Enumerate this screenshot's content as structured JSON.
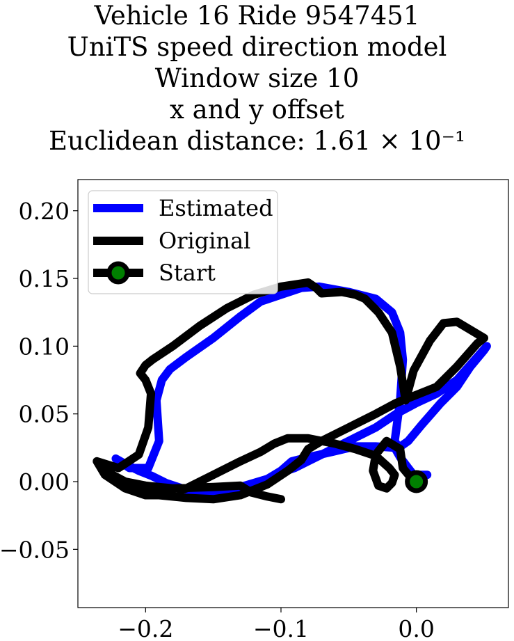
{
  "chart_data": {
    "type": "line",
    "title_lines": [
      "Vehicle 16 Ride 9547451",
      "UniTS speed direction model",
      "Window size 10",
      "x and y offset",
      "Euclidean distance: 1.61 × 10⁻¹"
    ],
    "xlabel": "",
    "ylabel": "",
    "xlim": [
      -0.25,
      0.068
    ],
    "ylim": [
      -0.093,
      0.223
    ],
    "xticks": [
      -0.2,
      -0.1,
      0.0
    ],
    "xtick_labels": [
      "−0.2",
      "−0.1",
      "0.0"
    ],
    "yticks": [
      -0.05,
      0.0,
      0.05,
      0.1,
      0.15,
      0.2
    ],
    "ytick_labels": [
      "−0.05",
      "0.00",
      "0.05",
      "0.10",
      "0.15",
      "0.20"
    ],
    "grid": false,
    "legend": {
      "position": "top-left",
      "entries": [
        "Estimated",
        "Original",
        "Start"
      ]
    },
    "colors": {
      "estimated": "#0000ff",
      "original": "#000000",
      "start_marker": "#008000"
    },
    "series": [
      {
        "name": "Estimated",
        "x": [
          0.008,
          -0.002,
          -0.006,
          -0.012,
          -0.016,
          -0.03,
          -0.045,
          -0.062,
          -0.08,
          -0.092,
          -0.1,
          -0.11,
          -0.13,
          -0.15,
          -0.17,
          -0.185,
          -0.195,
          -0.205,
          -0.215,
          -0.222,
          -0.212,
          -0.198,
          -0.19,
          -0.192,
          -0.188,
          -0.182,
          -0.17,
          -0.15,
          -0.13,
          -0.115,
          -0.1,
          -0.085,
          -0.072,
          -0.05,
          -0.03,
          -0.018,
          -0.012,
          -0.01,
          -0.012,
          -0.016,
          -0.013,
          -0.006,
          0.004,
          0.018,
          0.03,
          0.04,
          0.05,
          0.052,
          0.045,
          0.03,
          0.015,
          0.0,
          -0.015,
          -0.03,
          -0.05,
          -0.07,
          -0.08,
          -0.09,
          -0.096
        ],
        "y": [
          0.005,
          0.005,
          0.01,
          0.018,
          0.025,
          0.026,
          0.026,
          0.022,
          0.018,
          0.015,
          0.008,
          0.002,
          -0.004,
          -0.008,
          -0.006,
          -0.001,
          0.004,
          0.008,
          0.013,
          0.017,
          0.01,
          0.01,
          0.03,
          0.06,
          0.075,
          0.083,
          0.092,
          0.106,
          0.122,
          0.133,
          0.138,
          0.143,
          0.144,
          0.14,
          0.135,
          0.125,
          0.11,
          0.09,
          0.06,
          0.03,
          0.025,
          0.03,
          0.042,
          0.058,
          0.07,
          0.085,
          0.097,
          0.1,
          0.092,
          0.075,
          0.065,
          0.058,
          0.05,
          0.04,
          0.03,
          0.02,
          0.015,
          0.01,
          0.008
        ]
      },
      {
        "name": "Original",
        "x": [
          0.0,
          -0.005,
          -0.01,
          -0.012,
          -0.022,
          -0.03,
          -0.032,
          -0.028,
          -0.022,
          -0.018,
          -0.016,
          -0.02,
          -0.03,
          -0.045,
          -0.06,
          -0.08,
          -0.095,
          -0.105,
          -0.115,
          -0.13,
          -0.15,
          -0.17,
          -0.185,
          -0.2,
          -0.215,
          -0.23,
          -0.236,
          -0.22,
          -0.205,
          -0.198,
          -0.196,
          -0.2,
          -0.204,
          -0.2,
          -0.195,
          -0.18,
          -0.16,
          -0.14,
          -0.12,
          -0.1,
          -0.08,
          -0.074,
          -0.07,
          -0.055,
          -0.045,
          -0.038,
          -0.028,
          -0.018,
          -0.012,
          -0.008,
          -0.002,
          0.01,
          0.02,
          0.03,
          0.04,
          0.05,
          0.045,
          0.03,
          0.015,
          0.0,
          -0.015,
          -0.03,
          -0.05,
          -0.07,
          -0.08,
          -0.085,
          -0.095,
          -0.11,
          -0.13,
          -0.15,
          -0.17,
          -0.19,
          -0.21,
          -0.222,
          -0.23,
          -0.215,
          -0.2,
          -0.18,
          -0.15,
          -0.13,
          -0.122,
          -0.11,
          -0.1
        ],
        "y": [
          0.0,
          0.004,
          0.01,
          0.024,
          0.03,
          0.02,
          0.008,
          -0.003,
          -0.005,
          -0.001,
          0.005,
          0.01,
          0.019,
          0.024,
          0.028,
          0.032,
          0.032,
          0.028,
          0.022,
          0.015,
          0.005,
          -0.005,
          -0.01,
          -0.01,
          -0.005,
          0.005,
          0.015,
          0.01,
          0.02,
          0.04,
          0.065,
          0.075,
          0.08,
          0.086,
          0.09,
          0.1,
          0.115,
          0.128,
          0.138,
          0.144,
          0.147,
          0.143,
          0.139,
          0.14,
          0.138,
          0.135,
          0.125,
          0.11,
          0.085,
          0.06,
          0.082,
          0.104,
          0.117,
          0.118,
          0.112,
          0.106,
          0.102,
          0.085,
          0.07,
          0.064,
          0.058,
          0.05,
          0.04,
          0.03,
          0.024,
          0.016,
          0.008,
          -0.002,
          -0.01,
          -0.013,
          -0.012,
          -0.01,
          -0.004,
          0.002,
          0.008,
          0.0,
          -0.003,
          -0.005,
          -0.004,
          -0.003,
          -0.008,
          -0.011,
          -0.013
        ]
      },
      {
        "name": "Start",
        "x": [
          0.0
        ],
        "y": [
          0.0
        ]
      }
    ]
  }
}
